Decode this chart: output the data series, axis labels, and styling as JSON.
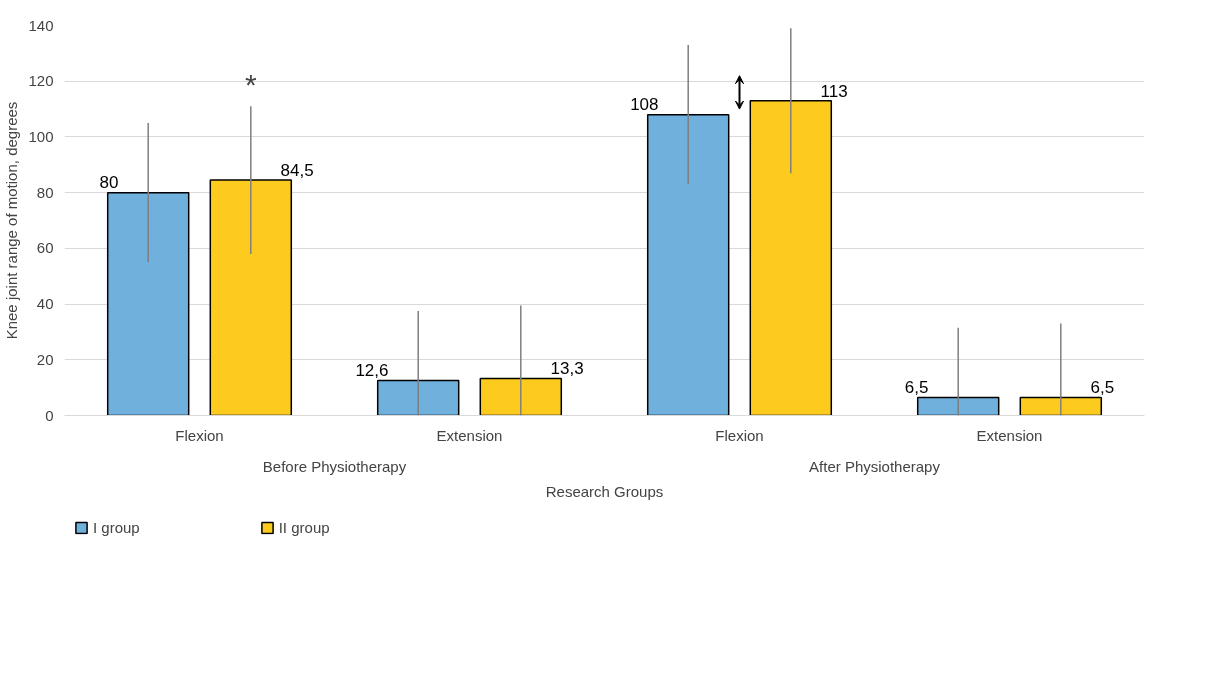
{
  "chart_data": {
    "type": "bar",
    "ylabel": "Knee joint range of motion, degrees",
    "xlabel": "Research Groups",
    "categories": [
      "Flexion",
      "Extension",
      "Flexion",
      "Extension"
    ],
    "series": [
      {
        "name": "I group",
        "color": "#6fb0dd",
        "values": [
          80,
          12.6,
          108,
          6.5
        ],
        "value_labels": [
          "80",
          "12,6",
          "108",
          "6,5"
        ],
        "errors": [
          [
            55,
            105
          ],
          [
            0,
            37.5
          ],
          [
            83,
            133
          ],
          [
            0,
            31.5
          ]
        ]
      },
      {
        "name": "II group",
        "color": "#fccb1e",
        "values": [
          84.5,
          13.3,
          113,
          6.5
        ],
        "value_labels": [
          "84,5",
          "13,3",
          "113",
          "6,5"
        ],
        "errors": [
          [
            58,
            111
          ],
          [
            0,
            39.5
          ],
          [
            87,
            139
          ],
          [
            0,
            33
          ]
        ]
      }
    ],
    "annotations": [
      "Before Physiotherapy",
      "After Physiotherapy",
      "*"
    ],
    "ylim": [
      0,
      140
    ],
    "yticks": [
      0,
      20,
      40,
      60,
      80,
      100,
      120,
      140
    ],
    "grid": "y",
    "legend": "bottom left"
  }
}
